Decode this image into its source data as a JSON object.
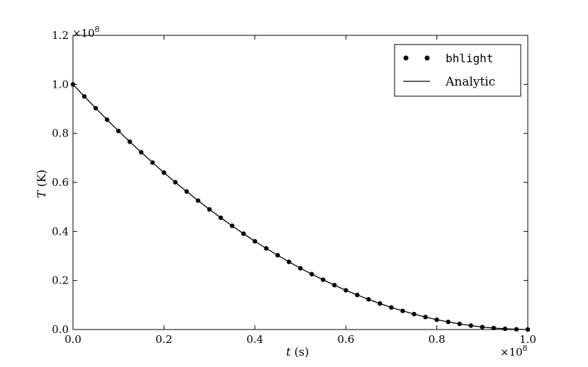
{
  "chart_data": {
    "type": "line",
    "xlabel_var": "t",
    "xlabel_unit": " (s)",
    "ylabel_var": "T",
    "ylabel_unit": " (K)",
    "xlim": [
      0.0,
      1.0
    ],
    "ylim": [
      0.0,
      1.2
    ],
    "x_offset_text": "×10",
    "x_offset_exp": "8",
    "y_offset_text": "×10",
    "y_offset_exp": "8",
    "x_ticks": [
      "0.0",
      "0.2",
      "0.4",
      "0.6",
      "0.8",
      "1.0"
    ],
    "y_ticks": [
      "0.0",
      "0.2",
      "0.4",
      "0.6",
      "0.8",
      "1.0",
      "1.2"
    ],
    "legend_position": "top-right",
    "grid": false,
    "series": [
      {
        "name": "bhlight",
        "style": "markers",
        "x": [
          0.0,
          0.025,
          0.05,
          0.075,
          0.1,
          0.125,
          0.15,
          0.175,
          0.2,
          0.225,
          0.25,
          0.275,
          0.3,
          0.325,
          0.35,
          0.375,
          0.4,
          0.425,
          0.45,
          0.475,
          0.5,
          0.525,
          0.55,
          0.575,
          0.6,
          0.625,
          0.65,
          0.675,
          0.7,
          0.725,
          0.75,
          0.775,
          0.8,
          0.825,
          0.85,
          0.875,
          0.9,
          0.925,
          0.95,
          0.975,
          1.0
        ],
        "y": [
          1.0,
          0.951,
          0.903,
          0.856,
          0.81,
          0.766,
          0.723,
          0.681,
          0.64,
          0.601,
          0.563,
          0.526,
          0.49,
          0.456,
          0.423,
          0.391,
          0.36,
          0.331,
          0.303,
          0.276,
          0.25,
          0.226,
          0.203,
          0.181,
          0.16,
          0.141,
          0.123,
          0.106,
          0.09,
          0.076,
          0.063,
          0.051,
          0.04,
          0.031,
          0.023,
          0.016,
          0.01,
          0.006,
          0.003,
          0.001,
          0.0
        ]
      },
      {
        "name": "Analytic",
        "style": "line",
        "x": [
          0.0,
          0.025,
          0.05,
          0.075,
          0.1,
          0.125,
          0.15,
          0.175,
          0.2,
          0.225,
          0.25,
          0.275,
          0.3,
          0.325,
          0.35,
          0.375,
          0.4,
          0.425,
          0.45,
          0.475,
          0.5,
          0.525,
          0.55,
          0.575,
          0.6,
          0.625,
          0.65,
          0.675,
          0.7,
          0.725,
          0.75,
          0.775,
          0.8,
          0.825,
          0.85,
          0.875,
          0.9,
          0.925,
          0.95,
          0.975,
          1.0
        ],
        "y": [
          1.0,
          0.951,
          0.903,
          0.856,
          0.81,
          0.766,
          0.723,
          0.681,
          0.64,
          0.601,
          0.563,
          0.526,
          0.49,
          0.456,
          0.423,
          0.391,
          0.36,
          0.331,
          0.303,
          0.276,
          0.25,
          0.226,
          0.203,
          0.181,
          0.16,
          0.141,
          0.123,
          0.106,
          0.09,
          0.076,
          0.063,
          0.051,
          0.04,
          0.031,
          0.023,
          0.016,
          0.01,
          0.006,
          0.003,
          0.001,
          0.0
        ]
      }
    ],
    "colors": {
      "line": "#000000",
      "marker": "#000000",
      "frame": "#000000"
    }
  }
}
